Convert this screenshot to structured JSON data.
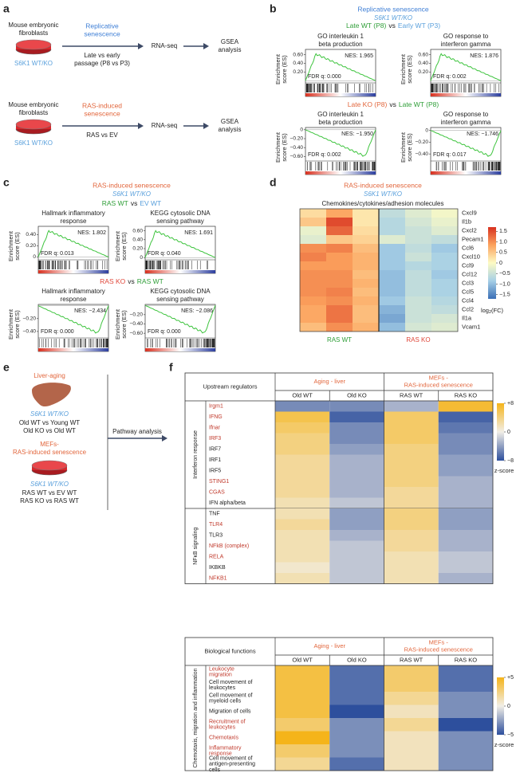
{
  "panel_a": {
    "label": "a",
    "rows": [
      {
        "source": [
          "Mouse embryonic",
          "fibroblasts"
        ],
        "genotype": "S6K1 WT/KO",
        "model": [
          "Replicative",
          "senescence"
        ],
        "comparison": [
          "Late vs early",
          "passage (P8 vs P3)"
        ],
        "method": "RNA-seq",
        "analysis": [
          "GSEA",
          "analysis"
        ]
      },
      {
        "source": [
          "Mouse embryonic",
          "fibroblasts"
        ],
        "genotype": "S6K1 WT/KO",
        "model": [
          "RAS-induced",
          "senescence"
        ],
        "comparison": [
          "RAS vs EV"
        ],
        "method": "RNA-seq",
        "analysis": [
          "GSEA",
          "analysis"
        ]
      }
    ]
  },
  "gsea_ylabel": [
    "Enrichment",
    "score (ES)"
  ],
  "panel_b": {
    "label": "b",
    "title": "Replicative senescence",
    "genotype": "S6K1 WT/KO",
    "groups": [
      {
        "comparison": [
          "Late WT (P8)",
          "vs",
          "Early WT (P3)"
        ],
        "plots": [
          {
            "title": [
              "GO interleukin 1",
              "beta production"
            ],
            "nes": "NES: 1.965",
            "fdr": "FDR q: 0.000",
            "ylim": [
              -0.05,
              0.72
            ],
            "yticks": [
              {
                "value": 0.6,
                "label": "0.60"
              },
              {
                "value": 0.4,
                "label": "0.40"
              },
              {
                "value": 0.2,
                "label": "0.20"
              }
            ]
          },
          {
            "title": [
              "GO response to",
              "interferon gamma"
            ],
            "nes": "NES: 1.876",
            "fdr": "FDR q: 0.002",
            "ylim": [
              -0.05,
              0.72
            ],
            "yticks": [
              {
                "value": 0.6,
                "label": "0.60"
              },
              {
                "value": 0.4,
                "label": "0.40"
              },
              {
                "value": 0.2,
                "label": "0.20"
              }
            ]
          }
        ]
      },
      {
        "comparison": [
          "Late KO (P8)",
          "vs",
          "Late WT (P8)"
        ],
        "plots": [
          {
            "title": [
              "GO interleukin 1",
              "beta production"
            ],
            "nes": "NES: −1.950",
            "fdr": "FDR q: 0.002",
            "ylim": [
              -0.7,
              0.05
            ],
            "yticks": [
              0,
              {
                "value": -0.2,
                "label": "−0.20"
              },
              {
                "value": -0.4,
                "label": "−0.40"
              },
              {
                "value": -0.6,
                "label": "−0.60"
              }
            ]
          },
          {
            "title": [
              "GO response to",
              "interferon gamma"
            ],
            "nes": "NES: −1.746",
            "fdr": "FDR q: 0.017",
            "ylim": [
              -0.52,
              0.05
            ],
            "yticks": [
              0,
              {
                "value": -0.2,
                "label": "−0.20"
              },
              {
                "value": -0.4,
                "label": "−0.40"
              }
            ]
          }
        ]
      }
    ]
  },
  "panel_c": {
    "label": "c",
    "title": "RAS-induced senescence",
    "genotype": "S6K1 WT/KO",
    "groups": [
      {
        "comparison": [
          "RAS WT",
          "vs",
          "EV WT"
        ],
        "plots": [
          {
            "title": [
              "Hallmark inflammatory",
              "response"
            ],
            "nes": "NES: 1.802",
            "fdr": "FDR q: 0.013",
            "ylim": [
              -0.05,
              0.55
            ],
            "yticks": [
              {
                "value": 0.4,
                "label": "0.40"
              },
              {
                "value": 0.2,
                "label": "0.20"
              },
              0
            ]
          },
          {
            "title": [
              "KEGG cytosolic DNA",
              "sensing pathway"
            ],
            "nes": "NES: 1.691",
            "fdr": "FDR q: 0.040",
            "ylim": [
              -0.05,
              0.7
            ],
            "yticks": [
              {
                "value": 0.6,
                "label": "0.60"
              },
              {
                "value": 0.4,
                "label": "0.40"
              },
              {
                "value": 0.2,
                "label": "0.20"
              },
              0
            ]
          }
        ]
      },
      {
        "comparison": [
          "RAS KO",
          "vs",
          "RAS WT"
        ],
        "plots": [
          {
            "title": [
              "Hallmark inflammatory",
              "response"
            ],
            "nes": "NES: −2.434",
            "fdr": "FDR q: 0.000",
            "ylim": [
              -0.5,
              0.02
            ],
            "yticks": [
              {
                "value": -0.2,
                "label": "−0.20"
              },
              {
                "value": -0.4,
                "label": "−0.40"
              }
            ]
          },
          {
            "title": [
              "KEGG cytosolic DNA",
              "sensing pathway"
            ],
            "nes": "NES: −2.086",
            "fdr": "FDR q: 0.000",
            "ylim": [
              -0.7,
              0.02
            ],
            "yticks": [
              {
                "value": -0.2,
                "label": "−0.20"
              },
              {
                "value": -0.4,
                "label": "−0.40"
              },
              {
                "value": -0.6,
                "label": "−0.60"
              }
            ]
          }
        ]
      }
    ]
  },
  "panel_d": {
    "label": "d",
    "title": "RAS-induced senescence",
    "genotype": "S6K1 WT/KO",
    "subtitle": "Chemokines/cytokines/adhesion molecules",
    "rows": [
      "Cxcl9",
      "Il1b",
      "Cxcl2",
      "Pecam1",
      "Ccl6",
      "Cxcl10",
      "Ccl9",
      "Ccl12",
      "Ccl3",
      "Ccl5",
      "Ccl4",
      "Ccl2",
      "Il1a",
      "Vcam1"
    ],
    "groups": [
      "RAS WT",
      "RAS KO"
    ],
    "values": [
      [
        0.3,
        0.8,
        0.2,
        -0.6,
        -0.3,
        -0.1
      ],
      [
        0.5,
        1.5,
        0.2,
        -0.7,
        -0.4,
        -0.2
      ],
      [
        -0.2,
        1.3,
        0.3,
        -0.7,
        -0.5,
        -0.3
      ],
      [
        -0.3,
        0.5,
        0.4,
        -0.3,
        -0.5,
        -0.6
      ],
      [
        1.0,
        1.1,
        0.6,
        -0.9,
        -0.6,
        -0.9
      ],
      [
        1.1,
        0.9,
        0.7,
        -0.9,
        -0.5,
        -0.8
      ],
      [
        0.9,
        0.9,
        0.7,
        -0.9,
        -0.7,
        -0.8
      ],
      [
        1.0,
        1.0,
        0.6,
        -1.0,
        -0.6,
        -0.9
      ],
      [
        1.0,
        1.0,
        0.7,
        -1.0,
        -0.6,
        -0.8
      ],
      [
        1.0,
        1.1,
        0.6,
        -1.0,
        -0.6,
        -0.8
      ],
      [
        0.9,
        1.0,
        0.7,
        -0.9,
        -0.5,
        -0.7
      ],
      [
        0.8,
        1.2,
        0.6,
        -1.1,
        -0.5,
        -0.6
      ],
      [
        0.8,
        1.2,
        0.6,
        -1.2,
        -0.5,
        -0.4
      ],
      [
        0.6,
        1.0,
        0.7,
        -1.0,
        -0.4,
        -0.3
      ]
    ],
    "colorbar": {
      "lim": [
        -1.7,
        1.7
      ],
      "colors": [
        "#3b6fb6",
        "#a6cfe6",
        "#fdfbc4",
        "#fca35e",
        "#d7301f"
      ],
      "ticks": [
        1.5,
        {
          "value": 1,
          "label": "1.0"
        },
        0.5,
        0,
        {
          "value": -0.5,
          "label": "−0.5"
        },
        {
          "value": -1,
          "label": "−1.0"
        },
        {
          "value": -1.5,
          "label": "−1.5"
        }
      ],
      "label": [
        "log",
        "2",
        "(FC)"
      ]
    }
  },
  "panel_e": {
    "label": "e",
    "liver": {
      "title": [
        "Liver-aging"
      ],
      "genotype": "S6K1 WT/KO",
      "comparisons": [
        "Old WT vs Young WT",
        "Old KO vs Old WT"
      ]
    },
    "mefs": {
      "title": [
        "MEFs-",
        "RAS-induced senescence"
      ],
      "genotype": "S6K1 WT/KO",
      "comparisons": [
        "RAS WT vs EV WT",
        "RAS KO vs RAS WT"
      ]
    },
    "arrow_label": "Pathway analysis"
  },
  "panel_f": {
    "label": "f",
    "highlight_color": "#c0392b",
    "tables": [
      {
        "header": "Upstream regulators",
        "groups": [
          {
            "name": [
              "Aging - liver"
            ],
            "columns": [
              "Old WT",
              "Old KO"
            ]
          },
          {
            "name": [
              "MEFs -",
              "RAS-induced senescence"
            ],
            "columns": [
              "RAS WT",
              "RAS KO"
            ]
          }
        ],
        "sections": [
          {
            "name": "Interferon response",
            "rows": [
              {
                "name": [
                  "Irgm1"
                ],
                "highlight": true,
                "values": [
                  -5,
                  -5,
                  -3,
                  7
                ]
              },
              {
                "name": [
                  "IFNG"
                ],
                "highlight": true,
                "values": [
                  6,
                  -7,
                  5,
                  -7
                ]
              },
              {
                "name": [
                  "Ifnar"
                ],
                "highlight": true,
                "values": [
                  5,
                  -5,
                  5,
                  -6
                ]
              },
              {
                "name": [
                  "IRF3"
                ],
                "highlight": true,
                "values": [
                  4,
                  -5,
                  5,
                  -5
                ]
              },
              {
                "name": [
                  "IRF7"
                ],
                "highlight": false,
                "values": [
                  4,
                  -4,
                  4,
                  -5
                ]
              },
              {
                "name": [
                  "IRF1"
                ],
                "highlight": false,
                "values": [
                  3,
                  -3,
                  4,
                  -4
                ]
              },
              {
                "name": [
                  "IRF5"
                ],
                "highlight": false,
                "values": [
                  3,
                  -3,
                  4,
                  -4
                ]
              },
              {
                "name": [
                  "STING1"
                ],
                "highlight": true,
                "values": [
                  3,
                  -3,
                  4,
                  -3
                ]
              },
              {
                "name": [
                  "CGAS"
                ],
                "highlight": true,
                "values": [
                  3,
                  -3,
                  3,
                  -3
                ]
              },
              {
                "name": [
                  "IFN alpha/beta"
                ],
                "highlight": false,
                "values": [
                  2,
                  -2,
                  3,
                  -3
                ]
              }
            ]
          },
          {
            "name": "NFκB signaling",
            "rows": [
              {
                "name": [
                  "TNF"
                ],
                "highlight": false,
                "values": [
                  2,
                  -4,
                  4,
                  -4
                ]
              },
              {
                "name": [
                  "TLR4"
                ],
                "highlight": true,
                "values": [
                  3,
                  -4,
                  4,
                  -4
                ]
              },
              {
                "name": [
                  "TLR3"
                ],
                "highlight": false,
                "values": [
                  2,
                  -3,
                  3,
                  -3
                ]
              },
              {
                "name": [
                  "NFkB (complex)"
                ],
                "highlight": true,
                "values": [
                  2,
                  -2,
                  3,
                  -3
                ]
              },
              {
                "name": [
                  "RELA"
                ],
                "highlight": true,
                "values": [
                  2,
                  -2,
                  2,
                  -2
                ]
              },
              {
                "name": [
                  "IKBKB"
                ],
                "highlight": false,
                "values": [
                  1,
                  -2,
                  2,
                  -2
                ]
              },
              {
                "name": [
                  "NFKB1"
                ],
                "highlight": true,
                "values": [
                  2,
                  -2,
                  2,
                  -3
                ]
              }
            ]
          }
        ],
        "colorbar": {
          "lim": [
            -8,
            8
          ],
          "colors": [
            "#2d4f9d",
            "#f1eee6",
            "#f5b41a"
          ],
          "ticks": [
            {
              "value": 8,
              "label": "+8"
            },
            0,
            {
              "value": -8,
              "label": "−8"
            }
          ],
          "label": "z-score"
        }
      },
      {
        "header": "Biological functions",
        "groups": [
          {
            "name": [
              "Aging - liver"
            ],
            "columns": [
              "Old WT",
              "Old KO"
            ]
          },
          {
            "name": [
              "MEFs -",
              "RAS-induced senescence"
            ],
            "columns": [
              "RAS WT",
              "RAS KO"
            ]
          }
        ],
        "sections": [
          {
            "name": "Chemotaxis, migration and inflammation",
            "rows": [
              {
                "name": [
                  "Leukocyte",
                  "migration"
                ],
                "highlight": true,
                "values": [
                  4,
                  -4,
                  3,
                  -4
                ]
              },
              {
                "name": [
                  "Cell movement of",
                  "leukocytes"
                ],
                "highlight": false,
                "values": [
                  4,
                  -4,
                  3,
                  -4
                ]
              },
              {
                "name": [
                  "Cell movement of",
                  "myeloid cells"
                ],
                "highlight": false,
                "values": [
                  4,
                  -4,
                  2,
                  -3
                ]
              },
              {
                "name": [
                  "Migration of cells"
                ],
                "highlight": false,
                "values": [
                  4,
                  -5,
                  1,
                  -3
                ]
              },
              {
                "name": [
                  "Recruitment of",
                  "leukocytes"
                ],
                "highlight": true,
                "values": [
                  3,
                  -3,
                  2,
                  -5
                ]
              },
              {
                "name": [
                  "Chemotaxis"
                ],
                "highlight": true,
                "values": [
                  5,
                  -3,
                  1,
                  -3
                ]
              },
              {
                "name": [
                  "Inflammatory",
                  "response"
                ],
                "highlight": true,
                "values": [
                  3,
                  -3,
                  1,
                  -3
                ]
              },
              {
                "name": [
                  "Cell movement of",
                  "antigen-presenting",
                  "cells"
                ],
                "highlight": false,
                "values": [
                  2,
                  -4,
                  1,
                  -3
                ]
              }
            ]
          }
        ],
        "colorbar": {
          "lim": [
            -5,
            5
          ],
          "colors": [
            "#2d4f9d",
            "#f1eee6",
            "#f5b41a"
          ],
          "ticks": [
            {
              "value": 5,
              "label": "+5"
            },
            0,
            {
              "value": -5,
              "label": "−5"
            }
          ],
          "label": "z-score"
        }
      }
    ]
  }
}
